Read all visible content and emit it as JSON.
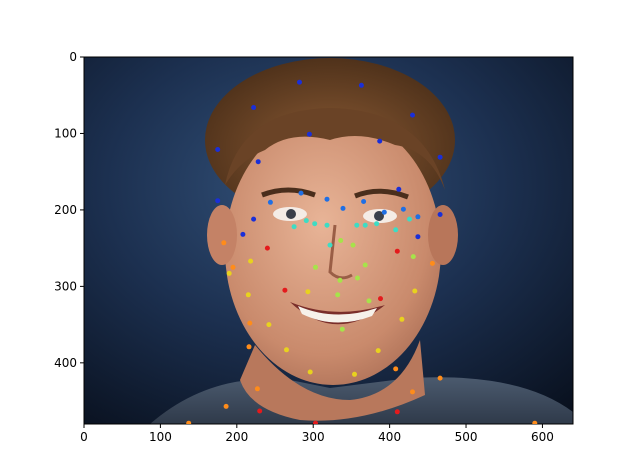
{
  "chart_data": {
    "type": "scatter",
    "title": "",
    "xlabel": "",
    "ylabel": "",
    "xlim": [
      0,
      640
    ],
    "ylim": [
      480,
      0
    ],
    "y_inverted": true,
    "grid": false,
    "legend": "none",
    "background": "photograph of a smiling young man with curly brown hair on a dark navy backdrop",
    "xticks": [
      0,
      100,
      200,
      300,
      400,
      500,
      600
    ],
    "yticks": [
      0,
      100,
      200,
      300,
      400
    ],
    "colors": {
      "red": "#e41a1c",
      "orange": "#ff8c1a",
      "yellow": "#e8d21e",
      "lime": "#a6e34a",
      "cyan": "#3ddcc4",
      "blue": "#1f6fe5",
      "navy": "#1a2fd8"
    },
    "points": [
      {
        "x": 282,
        "y": 33,
        "color": "navy"
      },
      {
        "x": 363,
        "y": 37,
        "color": "navy"
      },
      {
        "x": 222,
        "y": 66,
        "color": "navy"
      },
      {
        "x": 430,
        "y": 76,
        "color": "navy"
      },
      {
        "x": 295,
        "y": 101,
        "color": "navy"
      },
      {
        "x": 387,
        "y": 110,
        "color": "navy"
      },
      {
        "x": 175,
        "y": 121,
        "color": "navy"
      },
      {
        "x": 228,
        "y": 137,
        "color": "navy"
      },
      {
        "x": 466,
        "y": 131,
        "color": "navy"
      },
      {
        "x": 412,
        "y": 173,
        "color": "navy"
      },
      {
        "x": 175,
        "y": 188,
        "color": "navy"
      },
      {
        "x": 244,
        "y": 190,
        "color": "blue"
      },
      {
        "x": 466,
        "y": 206,
        "color": "navy"
      },
      {
        "x": 284,
        "y": 178,
        "color": "blue"
      },
      {
        "x": 318,
        "y": 186,
        "color": "blue"
      },
      {
        "x": 339,
        "y": 198,
        "color": "blue"
      },
      {
        "x": 366,
        "y": 189,
        "color": "blue"
      },
      {
        "x": 393,
        "y": 203,
        "color": "blue"
      },
      {
        "x": 418,
        "y": 199,
        "color": "blue"
      },
      {
        "x": 437,
        "y": 209,
        "color": "blue"
      },
      {
        "x": 426,
        "y": 212,
        "color": "cyan"
      },
      {
        "x": 222,
        "y": 212,
        "color": "navy"
      },
      {
        "x": 291,
        "y": 214,
        "color": "cyan"
      },
      {
        "x": 302,
        "y": 218,
        "color": "cyan"
      },
      {
        "x": 275,
        "y": 222,
        "color": "cyan"
      },
      {
        "x": 318,
        "y": 220,
        "color": "cyan"
      },
      {
        "x": 357,
        "y": 220,
        "color": "cyan"
      },
      {
        "x": 368,
        "y": 220,
        "color": "cyan"
      },
      {
        "x": 383,
        "y": 218,
        "color": "cyan"
      },
      {
        "x": 408,
        "y": 226,
        "color": "cyan"
      },
      {
        "x": 208,
        "y": 232,
        "color": "navy"
      },
      {
        "x": 437,
        "y": 235,
        "color": "navy"
      },
      {
        "x": 336,
        "y": 240,
        "color": "lime"
      },
      {
        "x": 322,
        "y": 246,
        "color": "cyan"
      },
      {
        "x": 352,
        "y": 246,
        "color": "lime"
      },
      {
        "x": 183,
        "y": 243,
        "color": "orange"
      },
      {
        "x": 240,
        "y": 250,
        "color": "red"
      },
      {
        "x": 410,
        "y": 254,
        "color": "red"
      },
      {
        "x": 431,
        "y": 261,
        "color": "lime"
      },
      {
        "x": 218,
        "y": 267,
        "color": "yellow"
      },
      {
        "x": 195,
        "y": 275,
        "color": "orange"
      },
      {
        "x": 456,
        "y": 270,
        "color": "orange"
      },
      {
        "x": 303,
        "y": 275,
        "color": "lime"
      },
      {
        "x": 368,
        "y": 272,
        "color": "lime"
      },
      {
        "x": 190,
        "y": 283,
        "color": "yellow"
      },
      {
        "x": 335,
        "y": 292,
        "color": "lime"
      },
      {
        "x": 358,
        "y": 289,
        "color": "lime"
      },
      {
        "x": 263,
        "y": 305,
        "color": "red"
      },
      {
        "x": 293,
        "y": 307,
        "color": "yellow"
      },
      {
        "x": 332,
        "y": 311,
        "color": "lime"
      },
      {
        "x": 215,
        "y": 311,
        "color": "yellow"
      },
      {
        "x": 433,
        "y": 306,
        "color": "yellow"
      },
      {
        "x": 388,
        "y": 316,
        "color": "red"
      },
      {
        "x": 373,
        "y": 319,
        "color": "lime"
      },
      {
        "x": 416,
        "y": 343,
        "color": "yellow"
      },
      {
        "x": 217,
        "y": 348,
        "color": "orange"
      },
      {
        "x": 242,
        "y": 350,
        "color": "yellow"
      },
      {
        "x": 338,
        "y": 356,
        "color": "lime"
      },
      {
        "x": 216,
        "y": 379,
        "color": "orange"
      },
      {
        "x": 265,
        "y": 383,
        "color": "yellow"
      },
      {
        "x": 385,
        "y": 384,
        "color": "yellow"
      },
      {
        "x": 296,
        "y": 412,
        "color": "yellow"
      },
      {
        "x": 354,
        "y": 415,
        "color": "yellow"
      },
      {
        "x": 408,
        "y": 408,
        "color": "orange"
      },
      {
        "x": 466,
        "y": 420,
        "color": "orange"
      },
      {
        "x": 227,
        "y": 434,
        "color": "orange"
      },
      {
        "x": 430,
        "y": 438,
        "color": "orange"
      },
      {
        "x": 186,
        "y": 457,
        "color": "orange"
      },
      {
        "x": 230,
        "y": 463,
        "color": "red"
      },
      {
        "x": 410,
        "y": 464,
        "color": "red"
      },
      {
        "x": 137,
        "y": 479,
        "color": "orange"
      },
      {
        "x": 303,
        "y": 479,
        "color": "red"
      },
      {
        "x": 590,
        "y": 479,
        "color": "orange"
      }
    ]
  }
}
